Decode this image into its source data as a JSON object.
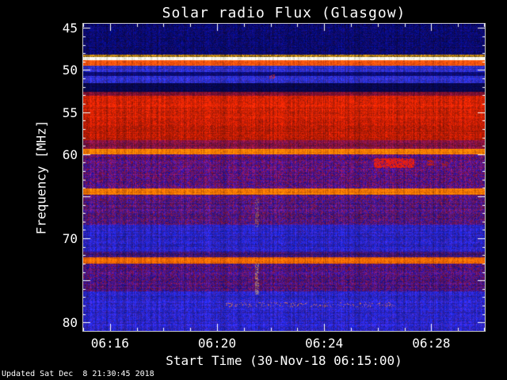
{
  "title": "Solar radio Flux (Glasgow)",
  "footer": "Updated Sat Dec  8 21:30:45 2018",
  "axes": {
    "x_label": "Start Time (30-Nov-18 06:15:00)",
    "y_label": "Frequency [MHz]",
    "x_ticks": [
      {
        "label": "06:16",
        "minute": 16
      },
      {
        "label": "06:20",
        "minute": 20
      },
      {
        "label": "06:24",
        "minute": 24
      },
      {
        "label": "06:28",
        "minute": 28
      }
    ],
    "y_ticks": [
      {
        "label": "45",
        "freq": 45
      },
      {
        "label": "50",
        "freq": 50
      },
      {
        "label": "55",
        "freq": 55
      },
      {
        "label": "60",
        "freq": 60
      },
      {
        "label": "70",
        "freq": 70
      },
      {
        "label": "80",
        "freq": 80
      }
    ],
    "text_color": "#ffffff",
    "background_color": "#000000"
  },
  "chart_data": {
    "type": "heatmap",
    "title": "Solar radio Flux (Glasgow)",
    "xlabel": "Start Time (30-Nov-18 06:15:00)",
    "ylabel": "Frequency [MHz]",
    "x_time_range_minutes": [
      15,
      30
    ],
    "x_tick_minutes": [
      16,
      20,
      24,
      28
    ],
    "y_freq_range_mhz": [
      44.5,
      81
    ],
    "y_tick_freqs": [
      45,
      50,
      55,
      60,
      70,
      80
    ],
    "grid": false,
    "legend": false,
    "bands": [
      {
        "f0": 44.5,
        "f1": 48.15,
        "color": "#0a0a6e",
        "noise": 70,
        "jitter": 30,
        "label": "dark blue background"
      },
      {
        "f0": 48.15,
        "f1": 48.45,
        "color": "#a07010",
        "noise": 90,
        "jitter": 20,
        "label": "yellow dashed row"
      },
      {
        "f0": 48.45,
        "f1": 48.85,
        "color": "#f8f8e6",
        "noise": 14,
        "jitter": 0,
        "label": "bright white line"
      },
      {
        "f0": 48.85,
        "f1": 49.5,
        "color": "#ff5510",
        "noise": 40,
        "jitter": 20,
        "label": "orange-red line"
      },
      {
        "f0": 49.5,
        "f1": 50.25,
        "color": "#2d2dc2",
        "noise": 45,
        "jitter": 40,
        "label": "blue band"
      },
      {
        "f0": 50.25,
        "f1": 50.75,
        "color": "#0b0b72",
        "noise": 50,
        "jitter": 25,
        "label": "dark stripe"
      },
      {
        "f0": 50.75,
        "f1": 51.6,
        "color": "#2d2dc2",
        "noise": 45,
        "jitter": 40,
        "label": "blue band"
      },
      {
        "f0": 51.6,
        "f1": 52.55,
        "color": "#07074e",
        "noise": 55,
        "jitter": 20,
        "label": "very dark navy band"
      },
      {
        "f0": 52.55,
        "f1": 53.05,
        "color": "#7a1030",
        "noise": 50,
        "jitter": 30,
        "label": "maroon transition"
      },
      {
        "f0": 53.05,
        "f1": 55.8,
        "color": "#d42202",
        "noise": 42,
        "jitter": 26,
        "label": "bright red band upper"
      },
      {
        "f0": 55.8,
        "f1": 58.35,
        "color": "#bb1c02",
        "noise": 45,
        "jitter": 26,
        "label": "bright red band lower"
      },
      {
        "f0": 58.35,
        "f1": 59.4,
        "color": "#7e1240",
        "noise": 48,
        "jitter": 50,
        "label": "dark maroon band"
      },
      {
        "f0": 59.4,
        "f1": 60.05,
        "color": "#ff7a00",
        "noise": 35,
        "jitter": 20,
        "label": "orange line ~60 MHz"
      },
      {
        "f0": 60.05,
        "f1": 64.05,
        "color": "#5c1478",
        "noise": 50,
        "jitter": 120,
        "label": "purple mottled band"
      },
      {
        "f0": 64.05,
        "f1": 64.85,
        "color": "#ff7700",
        "noise": 38,
        "jitter": 25,
        "label": "orange line ~64.5 MHz"
      },
      {
        "f0": 64.85,
        "f1": 68.35,
        "color": "#541678",
        "noise": 50,
        "jitter": 110,
        "label": "purple mottled band"
      },
      {
        "f0": 68.35,
        "f1": 71.55,
        "color": "#2a24c4",
        "noise": 45,
        "jitter": 45,
        "label": "blue band"
      },
      {
        "f0": 71.55,
        "f1": 72.25,
        "color": "#3c1472",
        "noise": 50,
        "jitter": 70,
        "label": "dark purple stripe"
      },
      {
        "f0": 72.25,
        "f1": 73.05,
        "color": "#ff6a00",
        "noise": 38,
        "jitter": 25,
        "label": "orange line ~72.5 MHz"
      },
      {
        "f0": 73.05,
        "f1": 76.25,
        "color": "#4f1478",
        "noise": 50,
        "jitter": 110,
        "label": "purple mottled band"
      },
      {
        "f0": 76.25,
        "f1": 81.01,
        "color": "#2b25c6",
        "noise": 45,
        "jitter": 45,
        "label": "blue band bottom"
      }
    ],
    "features": [
      {
        "name": "drifting-burst-main",
        "t0": 25.85,
        "t1": 27.35,
        "f0": 60.45,
        "f1": 61.55,
        "color": "#ff2000",
        "density": 0.8,
        "alpha": 1
      },
      {
        "name": "drifting-burst-tail",
        "t0": 27.8,
        "t1": 28.15,
        "f0": 60.7,
        "f1": 61.25,
        "color": "#d22000",
        "density": 0.5,
        "alpha": 0.9
      },
      {
        "name": "drifting-burst-fragment",
        "t0": 28.4,
        "t1": 28.6,
        "f0": 60.95,
        "f1": 61.3,
        "color": "#c22200",
        "density": 0.4,
        "alpha": 0.8
      },
      {
        "name": "vertical-streak-upper",
        "t0": 21.42,
        "t1": 21.54,
        "f0": 65.3,
        "f1": 68.6,
        "color": "#ffcc55",
        "density": 0.5,
        "alpha": 0.4
      },
      {
        "name": "vertical-streak-lower",
        "t0": 21.42,
        "t1": 21.54,
        "f0": 72.9,
        "f1": 76.6,
        "color": "#ffd966",
        "density": 0.65,
        "alpha": 0.55
      },
      {
        "name": "interference-dot",
        "t0": 21.95,
        "t1": 22.12,
        "f0": 50.5,
        "f1": 50.85,
        "color": "#ff3300",
        "density": 0.6,
        "alpha": 1
      },
      {
        "name": "speckle-row",
        "t0": 20.3,
        "t1": 26.6,
        "f0": 77.6,
        "f1": 78.05,
        "color": "#ff8833",
        "density": 0.13,
        "alpha": 0.85
      }
    ]
  }
}
